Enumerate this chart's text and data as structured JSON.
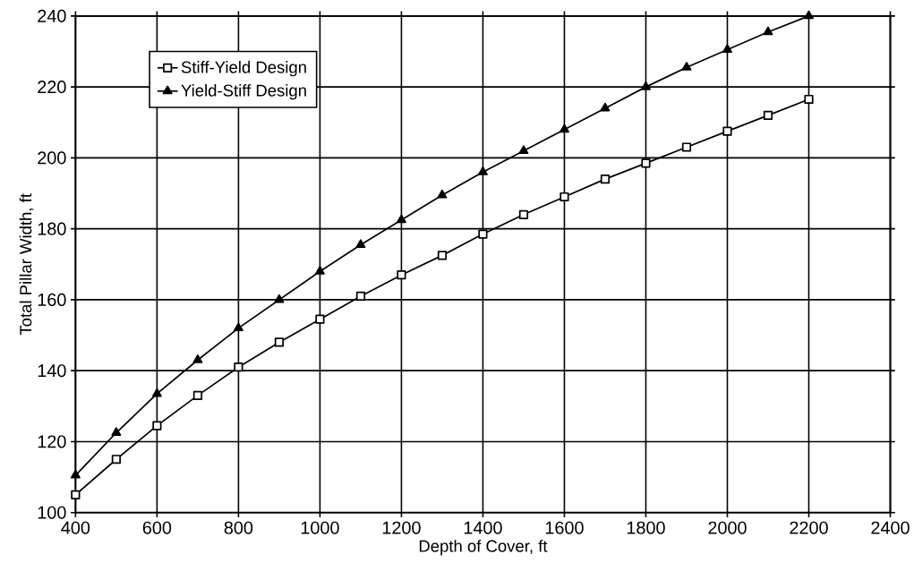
{
  "chart_data": {
    "type": "line",
    "xlabel": "Depth of Cover, ft",
    "ylabel": "Total Pillar Width, ft",
    "x": [
      400,
      500,
      600,
      700,
      800,
      900,
      1000,
      1100,
      1200,
      1300,
      1400,
      1500,
      1600,
      1700,
      1800,
      1900,
      2000,
      2100,
      2200
    ],
    "series": [
      {
        "name": "Stiff-Yield Design",
        "color": "#000000",
        "marker": "square",
        "values": [
          105,
          115,
          124.5,
          133,
          141,
          148,
          154.5,
          161,
          167,
          172.5,
          178.5,
          184,
          189,
          194,
          198.5,
          203,
          207.5,
          212,
          216.5
        ]
      },
      {
        "name": "Yield-Stiff Design",
        "color": "#000000",
        "marker": "triangle",
        "values": [
          110.5,
          122.5,
          133.5,
          143,
          152,
          160,
          168,
          175.5,
          182.5,
          189.5,
          196,
          202,
          208,
          214,
          220,
          225.5,
          230.5,
          235.5,
          240
        ]
      }
    ],
    "xlim": [
      400,
      2400
    ],
    "ylim": [
      100,
      240
    ],
    "xticks": [
      400,
      600,
      800,
      1000,
      1200,
      1400,
      1600,
      1800,
      2000,
      2200,
      2400
    ],
    "yticks": [
      100,
      120,
      140,
      160,
      180,
      200,
      220,
      240
    ],
    "grid": true,
    "legend": "top left",
    "line_style": "solid"
  }
}
